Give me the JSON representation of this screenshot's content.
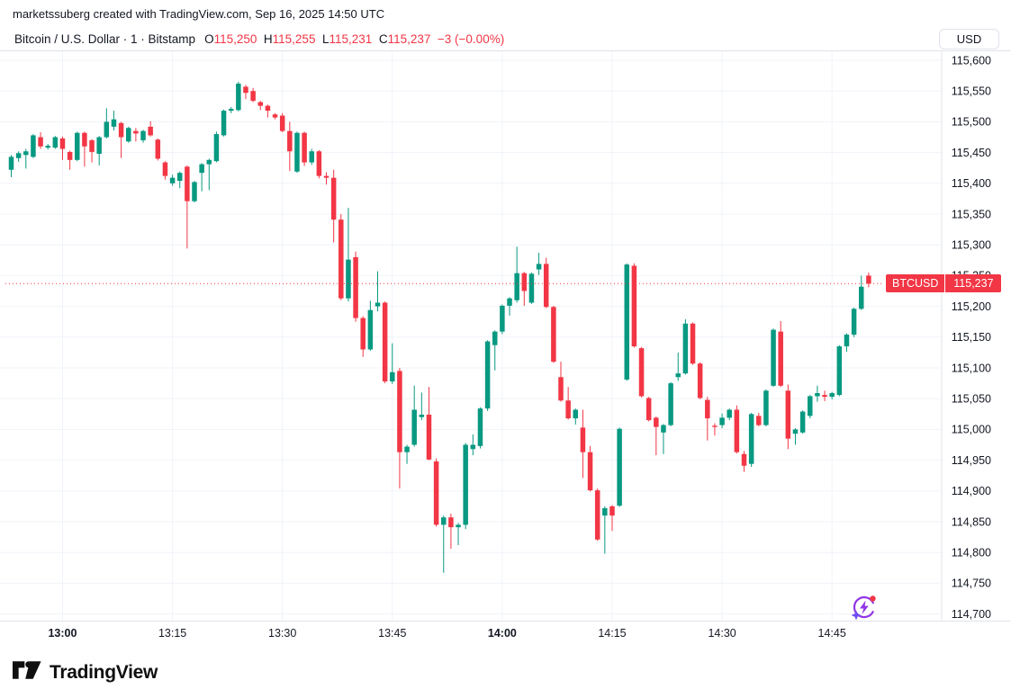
{
  "attribution": "marketssuberg created with TradingView.com, Sep 16, 2025 14:50 UTC",
  "header": {
    "symbol_title": "Bitcoin / U.S. Dollar · 1 · Bitstamp",
    "ohlc": {
      "o_label": "O",
      "o_value": "115,250",
      "h_label": "H",
      "h_value": "115,255",
      "l_label": "L",
      "l_value": "115,231",
      "c_label": "C",
      "c_value": "115,237",
      "change": "−3 (−0.00%)"
    },
    "currency_button": "USD"
  },
  "price_flag": {
    "symbol": "BTCUSD",
    "price": "115,237"
  },
  "footer": {
    "logo_text": "TradingView"
  },
  "icons": {
    "ai_spark": "ai-spark-icon",
    "logo_mark": "tradingview-logo-icon"
  },
  "colors": {
    "up": "#089981",
    "down": "#F23645",
    "last_price_line": "#F23645",
    "grid": "#F0F3FA",
    "border": "#E0E3EB",
    "text": "#131722",
    "flag_bg": "#F23645",
    "flag_text": "#FFFFFF",
    "ai_purple": "#9334E6",
    "ai_red": "#F23645",
    "ai_blue": "#6C4DF6"
  },
  "chart_data": {
    "type": "candlestick",
    "title": "Bitcoin / U.S. Dollar",
    "interval": "1",
    "exchange": "Bitstamp",
    "currency": "USD",
    "last_price": 115237,
    "price_axis": {
      "min": 114700,
      "max": 115600,
      "step": 50
    },
    "time_ticks": [
      {
        "i": 7,
        "label": "13:00",
        "bold": true
      },
      {
        "i": 22,
        "label": "13:15",
        "bold": false
      },
      {
        "i": 37,
        "label": "13:30",
        "bold": false
      },
      {
        "i": 52,
        "label": "13:45",
        "bold": false
      },
      {
        "i": 67,
        "label": "14:00",
        "bold": true
      },
      {
        "i": 82,
        "label": "14:15",
        "bold": false
      },
      {
        "i": 97,
        "label": "14:30",
        "bold": false
      },
      {
        "i": 112,
        "label": "14:45",
        "bold": false
      }
    ],
    "candles": [
      [
        115422,
        115446,
        115410,
        115443
      ],
      [
        115441,
        115452,
        115435,
        115449
      ],
      [
        115446,
        115456,
        115424,
        115452
      ],
      [
        115443,
        115480,
        115441,
        115478
      ],
      [
        115475,
        115483,
        115456,
        115460
      ],
      [
        115458,
        115464,
        115455,
        115461
      ],
      [
        115458,
        115477,
        115456,
        115475
      ],
      [
        115473,
        115476,
        115438,
        115456
      ],
      [
        115451,
        115453,
        115422,
        115438
      ],
      [
        115438,
        115484,
        115436,
        115482
      ],
      [
        115482,
        115484,
        115427,
        115460
      ],
      [
        115470,
        115472,
        115434,
        115451
      ],
      [
        115448,
        115477,
        115429,
        115475
      ],
      [
        115475,
        115522,
        115473,
        115500
      ],
      [
        115492,
        115518,
        115486,
        115504
      ],
      [
        115498,
        115500,
        115441,
        115475
      ],
      [
        115468,
        115492,
        115466,
        115490
      ],
      [
        115485,
        115490,
        115468,
        115481
      ],
      [
        115470,
        115487,
        115466,
        115485
      ],
      [
        115492,
        115501,
        115476,
        115478
      ],
      [
        115471,
        115473,
        115437,
        115440
      ],
      [
        115434,
        115436,
        115406,
        115412
      ],
      [
        115400,
        115414,
        115396,
        115409
      ],
      [
        115404,
        115419,
        115392,
        115417
      ],
      [
        115427,
        115429,
        115294,
        115371
      ],
      [
        115371,
        115404,
        115369,
        115402
      ],
      [
        115417,
        115433,
        115387,
        115431
      ],
      [
        115431,
        115440,
        115389,
        115438
      ],
      [
        115436,
        115484,
        115434,
        115480
      ],
      [
        115478,
        115520,
        115476,
        115518
      ],
      [
        115518,
        115524,
        115514,
        115521
      ],
      [
        115519,
        115565,
        115517,
        115562
      ],
      [
        115557,
        115560,
        115537,
        115547
      ],
      [
        115550,
        115555,
        115532,
        115534
      ],
      [
        115532,
        115534,
        115519,
        115526
      ],
      [
        115526,
        115528,
        115507,
        115518
      ],
      [
        115512,
        115514,
        115504,
        115507
      ],
      [
        115510,
        115514,
        115483,
        115485
      ],
      [
        115485,
        115500,
        115420,
        115452
      ],
      [
        115419,
        115484,
        115417,
        115482
      ],
      [
        115482,
        115484,
        115428,
        115434
      ],
      [
        115434,
        115456,
        115430,
        115452
      ],
      [
        115452,
        115454,
        115408,
        115412
      ],
      [
        115412,
        115418,
        115398,
        115409
      ],
      [
        115409,
        115422,
        115304,
        115341
      ],
      [
        115341,
        115350,
        115210,
        115213
      ],
      [
        115213,
        115360,
        115208,
        115276
      ],
      [
        115280,
        115289,
        115175,
        115181
      ],
      [
        115181,
        115184,
        115118,
        115130
      ],
      [
        115130,
        115209,
        115128,
        115194
      ],
      [
        115200,
        115257,
        115192,
        115206
      ],
      [
        115206,
        115208,
        115075,
        115078
      ],
      [
        115078,
        115140,
        115074,
        115093
      ],
      [
        115095,
        115100,
        114904,
        114963
      ],
      [
        114963,
        114975,
        114944,
        114972
      ],
      [
        114975,
        115071,
        114972,
        115032
      ],
      [
        115020,
        115060,
        115015,
        115024
      ],
      [
        115024,
        115069,
        114950,
        114951
      ],
      [
        114948,
        114953,
        114842,
        114845
      ],
      [
        114845,
        114860,
        114767,
        114857
      ],
      [
        114857,
        114863,
        114806,
        114841
      ],
      [
        114841,
        114848,
        114812,
        114845
      ],
      [
        114845,
        114978,
        114838,
        114975
      ],
      [
        114968,
        114992,
        114958,
        114975
      ],
      [
        114973,
        115036,
        114969,
        115034
      ],
      [
        115034,
        115145,
        115030,
        115143
      ],
      [
        115137,
        115161,
        115096,
        115159
      ],
      [
        115159,
        115203,
        115155,
        115201
      ],
      [
        115201,
        115215,
        115185,
        115213
      ],
      [
        115210,
        115297,
        115206,
        115254
      ],
      [
        115254,
        115256,
        115201,
        115225
      ],
      [
        115206,
        115255,
        115204,
        115253
      ],
      [
        115260,
        115287,
        115251,
        115269
      ],
      [
        115269,
        115279,
        115197,
        115199
      ],
      [
        115199,
        115201,
        115108,
        115110
      ],
      [
        115085,
        115110,
        115045,
        115047
      ],
      [
        115047,
        115069,
        115016,
        115018
      ],
      [
        115018,
        115034,
        115008,
        115032
      ],
      [
        115003,
        115032,
        114921,
        114963
      ],
      [
        114963,
        114973,
        114899,
        114901
      ],
      [
        114901,
        114904,
        114819,
        114821
      ],
      [
        114860,
        114875,
        114798,
        114872
      ],
      [
        114875,
        114877,
        114835,
        114860
      ],
      [
        114876,
        115003,
        114874,
        115001
      ],
      [
        115081,
        115270,
        115079,
        115268
      ],
      [
        115266,
        115270,
        115133,
        115135
      ],
      [
        115132,
        115134,
        115052,
        115054
      ],
      [
        115051,
        115053,
        115013,
        115015
      ],
      [
        115019,
        115021,
        114958,
        115004
      ],
      [
        114995,
        115009,
        114960,
        115007
      ],
      [
        115007,
        115077,
        115005,
        115075
      ],
      [
        115085,
        115125,
        115079,
        115091
      ],
      [
        115091,
        115179,
        115089,
        115172
      ],
      [
        115172,
        115174,
        115105,
        115107
      ],
      [
        115107,
        115109,
        115049,
        115051
      ],
      [
        115048,
        115053,
        114982,
        115018
      ],
      [
        115006,
        115010,
        114990,
        115004
      ],
      [
        115007,
        115026,
        115002,
        115019
      ],
      [
        115019,
        115034,
        115015,
        115032
      ],
      [
        115032,
        115039,
        114961,
        114963
      ],
      [
        114960,
        114965,
        114931,
        114941
      ],
      [
        114944,
        115027,
        114939,
        115025
      ],
      [
        115022,
        115027,
        115005,
        115007
      ],
      [
        115007,
        115065,
        115005,
        115063
      ],
      [
        115071,
        115164,
        115069,
        115162
      ],
      [
        115159,
        115176,
        115069,
        115071
      ],
      [
        115063,
        115073,
        114968,
        114985
      ],
      [
        114993,
        115002,
        114975,
        115000
      ],
      [
        114995,
        115031,
        114993,
        115029
      ],
      [
        115022,
        115056,
        115018,
        115054
      ],
      [
        115054,
        115071,
        115045,
        115059
      ],
      [
        115056,
        115063,
        115046,
        115053
      ],
      [
        115053,
        115061,
        115049,
        115059
      ],
      [
        115056,
        115137,
        115054,
        115135
      ],
      [
        115135,
        115156,
        115126,
        115154
      ],
      [
        115154,
        115198,
        115150,
        115196
      ],
      [
        115196,
        115250,
        115194,
        115232
      ],
      [
        115250,
        115255,
        115231,
        115237
      ]
    ]
  }
}
